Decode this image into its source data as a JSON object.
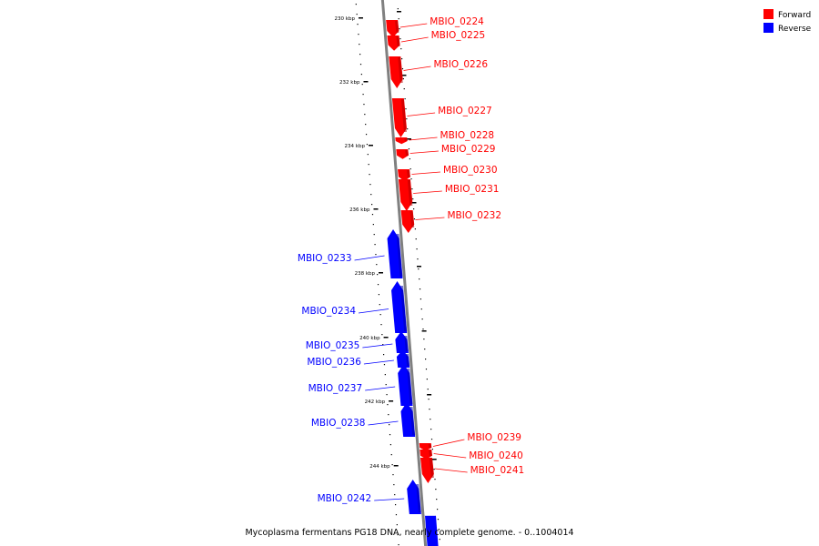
{
  "caption": "Mycoplasma fermentans PG18 DNA, nearly complete genome. - 0..1004014",
  "legend": [
    {
      "label": "Forward",
      "color": "#ff0000"
    },
    {
      "label": "Reverse",
      "color": "#0000ff"
    }
  ],
  "colors": {
    "forward": "#ff0000",
    "reverse": "#0000ff",
    "backbone": "#808080"
  },
  "axis": {
    "unit": "kbp",
    "ticks": [
      "230 kbp",
      "232 kbp",
      "234 kbp",
      "236 kbp",
      "238 kbp",
      "240 kbp",
      "242 kbp",
      "244 kbp"
    ]
  },
  "genes": [
    {
      "name": "MBIO_0224",
      "strand": "forward"
    },
    {
      "name": "MBIO_0225",
      "strand": "forward"
    },
    {
      "name": "MBIO_0226",
      "strand": "forward"
    },
    {
      "name": "MBIO_0227",
      "strand": "forward"
    },
    {
      "name": "MBIO_0228",
      "strand": "forward"
    },
    {
      "name": "MBIO_0229",
      "strand": "forward"
    },
    {
      "name": "MBIO_0230",
      "strand": "forward"
    },
    {
      "name": "MBIO_0231",
      "strand": "forward"
    },
    {
      "name": "MBIO_0232",
      "strand": "forward"
    },
    {
      "name": "MBIO_0233",
      "strand": "reverse"
    },
    {
      "name": "MBIO_0234",
      "strand": "reverse"
    },
    {
      "name": "MBIO_0235",
      "strand": "reverse"
    },
    {
      "name": "MBIO_0236",
      "strand": "reverse"
    },
    {
      "name": "MBIO_0237",
      "strand": "reverse"
    },
    {
      "name": "MBIO_0238",
      "strand": "reverse"
    },
    {
      "name": "MBIO_0239",
      "strand": "forward"
    },
    {
      "name": "MBIO_0240",
      "strand": "forward"
    },
    {
      "name": "MBIO_0241",
      "strand": "forward"
    },
    {
      "name": "MBIO_0242",
      "strand": "reverse"
    }
  ]
}
